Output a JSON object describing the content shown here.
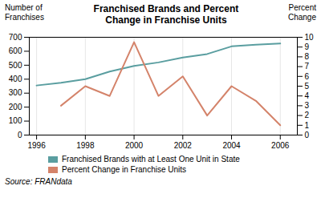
{
  "chart_data": {
    "type": "line",
    "title": "Franchised Brands and Percent\nChange in Franchise Units",
    "ylabel": "Number of\nFranchises",
    "y2label": "Percent\nChange",
    "caption": "Source: FRANdata",
    "x": [
      1996,
      1997,
      1998,
      1999,
      2000,
      2001,
      2002,
      2003,
      2004,
      2005,
      2006
    ],
    "series": [
      {
        "name": "Franchised Brands with at Least One Unit in State",
        "color": "#5a9ea0",
        "values": [
          355,
          375,
          400,
          455,
          495,
          520,
          555,
          580,
          635,
          647,
          655
        ]
      },
      {
        "name": "Percent Change in Franchise Units",
        "color": "#d4836a",
        "axis": "y2",
        "values": [
          null,
          3.0,
          5.0,
          4.0,
          9.5,
          4.0,
          6.0,
          2.0,
          5.0,
          3.5,
          1.0
        ]
      }
    ],
    "xlim": [
      1995.7,
      2006.7
    ],
    "xticks": [
      1996,
      1998,
      2000,
      2002,
      2004,
      2006
    ],
    "ylim": [
      0,
      700
    ],
    "yticks": [
      0,
      100,
      200,
      300,
      400,
      500,
      600,
      700
    ],
    "y2lim": [
      0,
      10
    ],
    "y2ticks": [
      0,
      1,
      2,
      3,
      4,
      5,
      6,
      7,
      8,
      9,
      10
    ],
    "grid": "x",
    "legend": "bottom"
  }
}
